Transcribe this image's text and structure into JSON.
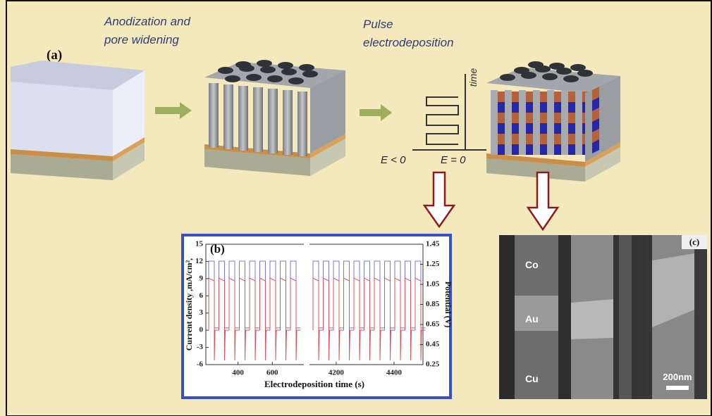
{
  "panel_a": {
    "label": "(a)",
    "step1_lines": [
      "Anodization and",
      "pore widening"
    ],
    "step2_lines": [
      "Pulse",
      "electrodeposition"
    ],
    "pulse": {
      "time_label": "time",
      "e_negative": "E < 0",
      "e_zero": "E = 0"
    }
  },
  "panel_b": {
    "label": "(b)",
    "xlabel": "Electrodeposition time (s)",
    "ylabel": "Current density ,mA/cm²,",
    "y2label": "Potential (V)",
    "ylim": [
      -6,
      15
    ],
    "yticks": [
      -6,
      -3,
      0,
      3,
      6,
      9,
      12,
      15
    ],
    "y2lim": [
      0.25,
      1.45
    ],
    "y2ticks": [
      0.25,
      0.45,
      0.65,
      0.85,
      1.05,
      1.25,
      1.45
    ],
    "xlim": [
      [
        212,
        780
      ],
      [
        4110,
        4500
      ]
    ],
    "xticks": [
      400,
      600,
      4200,
      4400
    ]
  },
  "panel_c": {
    "label": "(c)",
    "labels": [
      "Co",
      "Au",
      "Cu"
    ],
    "scale_bar": "200nm"
  }
}
